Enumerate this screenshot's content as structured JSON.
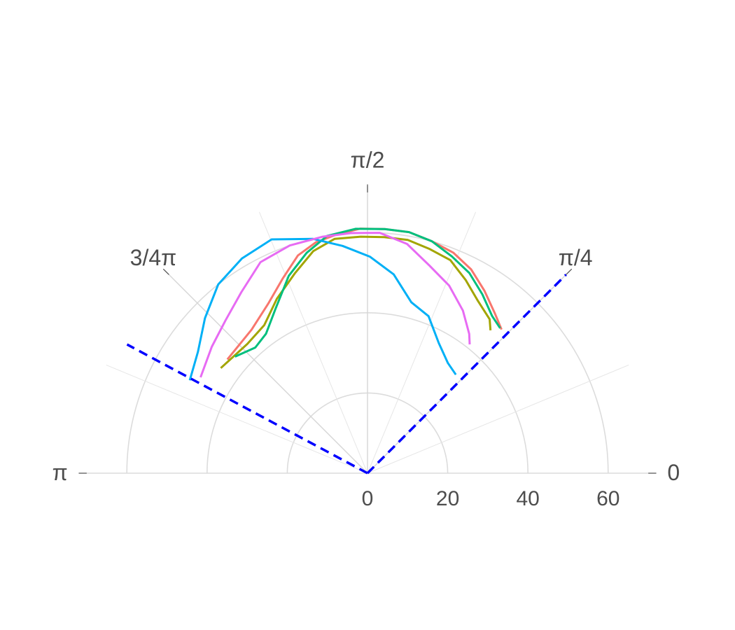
{
  "chart_data": {
    "type": "line",
    "coordinate_system": "polar",
    "theta_range": [
      0,
      3.141592653589793
    ],
    "r_range": [
      0,
      70
    ],
    "grid": true,
    "r_ticks": [
      {
        "value": 0,
        "label": "0"
      },
      {
        "value": 20,
        "label": "20"
      },
      {
        "value": 40,
        "label": "40"
      },
      {
        "value": 60,
        "label": "60"
      }
    ],
    "theta_ticks": [
      {
        "value": 0,
        "label": "0"
      },
      {
        "value": 0.7853981633974483,
        "label": "π/4"
      },
      {
        "value": 1.5707963267948966,
        "label": "π/2"
      },
      {
        "value": 2.356194490192345,
        "label": "3/4π"
      },
      {
        "value": 3.141592653589793,
        "label": "π"
      }
    ],
    "minor_theta_grid": [
      0.39269908169872414,
      1.1780972450961724,
      1.9634954084936207,
      2.748893571891069
    ],
    "reference_lines": [
      {
        "theta": 0.7853981633974483,
        "r_end": 70,
        "color": "#0000ff",
        "style": "dashed"
      },
      {
        "theta": 2.65,
        "r_end": 68,
        "color": "#0000ff",
        "style": "dashed"
      }
    ],
    "series": [
      {
        "color": "#F8766D",
        "points": [
          [
            2.46,
            45
          ],
          [
            2.25,
            46
          ],
          [
            2.1,
            49
          ],
          [
            1.98,
            53
          ],
          [
            1.88,
            57
          ],
          [
            1.79,
            59
          ],
          [
            1.7,
            60
          ],
          [
            1.6,
            61
          ],
          [
            1.5,
            61
          ],
          [
            1.4,
            61
          ],
          [
            1.3,
            60
          ],
          [
            1.2,
            59
          ],
          [
            1.1,
            57
          ],
          [
            1.0,
            54
          ],
          [
            0.9,
            51
          ],
          [
            0.82,
            49
          ]
        ]
      },
      {
        "color": "#A3A500",
        "points": [
          [
            2.52,
            45
          ],
          [
            2.32,
            44
          ],
          [
            2.18,
            45
          ],
          [
            2.05,
            49
          ],
          [
            1.92,
            53
          ],
          [
            1.81,
            57
          ],
          [
            1.71,
            59
          ],
          [
            1.6,
            59
          ],
          [
            1.5,
            59
          ],
          [
            1.4,
            59
          ],
          [
            1.3,
            58
          ],
          [
            1.2,
            57
          ],
          [
            1.1,
            54
          ],
          [
            1.0,
            51
          ],
          [
            0.9,
            49
          ],
          [
            0.86,
            47
          ]
        ]
      },
      {
        "color": "#00BF7D",
        "points": [
          [
            2.42,
            44
          ],
          [
            2.3,
            42
          ],
          [
            2.2,
            43
          ],
          [
            2.08,
            47
          ],
          [
            1.95,
            53
          ],
          [
            1.84,
            57
          ],
          [
            1.74,
            60
          ],
          [
            1.62,
            61
          ],
          [
            1.5,
            61
          ],
          [
            1.4,
            61
          ],
          [
            1.3,
            60
          ],
          [
            1.2,
            58
          ],
          [
            1.1,
            56
          ],
          [
            1.0,
            53
          ],
          [
            0.9,
            50
          ],
          [
            0.83,
            49
          ]
        ]
      },
      {
        "color": "#00B0F6",
        "points": [
          [
            2.66,
            50
          ],
          [
            2.52,
            52
          ],
          [
            2.38,
            56
          ],
          [
            2.24,
            60
          ],
          [
            2.1,
            62
          ],
          [
            1.96,
            63
          ],
          [
            1.8,
            60
          ],
          [
            1.68,
            57
          ],
          [
            1.56,
            54
          ],
          [
            1.44,
            50
          ],
          [
            1.32,
            44
          ],
          [
            1.2,
            42
          ],
          [
            1.07,
            37
          ],
          [
            0.94,
            34
          ],
          [
            0.84,
            33
          ]
        ]
      },
      {
        "color": "#E76BF3",
        "points": [
          [
            2.62,
            48
          ],
          [
            2.46,
            50
          ],
          [
            2.32,
            52
          ],
          [
            2.18,
            55
          ],
          [
            2.04,
            59
          ],
          [
            1.9,
            60
          ],
          [
            1.76,
            60
          ],
          [
            1.64,
            60
          ],
          [
            1.52,
            60
          ],
          [
            1.4,
            58
          ],
          [
            1.28,
            54
          ],
          [
            1.16,
            51
          ],
          [
            1.04,
            47
          ],
          [
            0.94,
            43
          ],
          [
            0.9,
            41
          ]
        ]
      }
    ]
  }
}
